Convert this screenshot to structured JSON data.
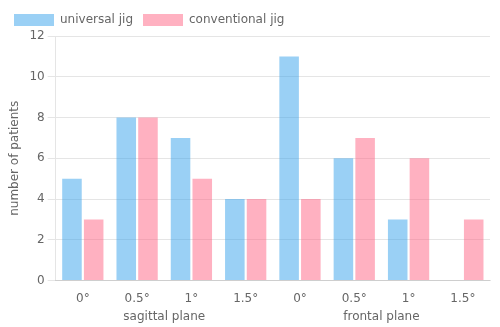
{
  "chart_data": {
    "type": "bar",
    "categories": [
      "0°",
      "0.5°",
      "1°",
      "1.5°",
      "0°",
      "0.5°",
      "1°",
      "1.5°"
    ],
    "series": [
      {
        "name": "universal jig",
        "values": [
          5,
          8,
          7,
          4,
          11,
          6,
          3,
          0
        ]
      },
      {
        "name": "conventional jig",
        "values": [
          3,
          8,
          5,
          4,
          4,
          7,
          6,
          3
        ]
      }
    ],
    "ylabel": "number of patients",
    "annotations": [
      "sagittal plane",
      "frontal plane"
    ],
    "ylim": [
      0,
      12
    ],
    "yticks": [
      0,
      2,
      4,
      6,
      8,
      10,
      12
    ],
    "grid": "y",
    "legend": "upper left"
  }
}
